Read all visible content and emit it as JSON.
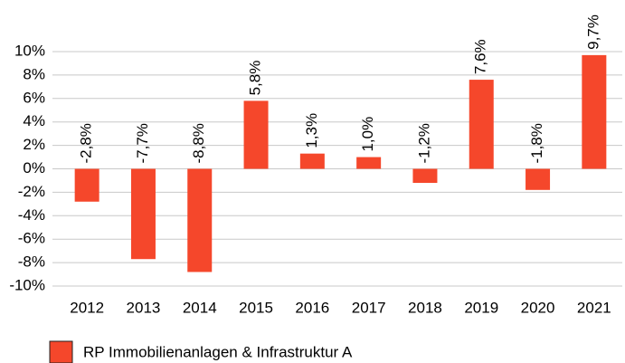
{
  "chart_data": {
    "type": "bar",
    "categories": [
      "2012",
      "2013",
      "2014",
      "2015",
      "2016",
      "2017",
      "2018",
      "2019",
      "2020",
      "2021"
    ],
    "series": [
      {
        "name": "RP Immobilienanlagen & Infrastruktur A",
        "color": "#f5472b",
        "values": [
          -2.8,
          -7.7,
          -8.8,
          5.8,
          1.3,
          1.0,
          -1.2,
          7.6,
          -1.8,
          9.7
        ],
        "value_labels": [
          "-2,8%",
          "-7,7%",
          "-8,8%",
          "5,8%",
          "1,3%",
          "1,0%",
          "-1,2%",
          "7,6%",
          "-1,8%",
          "9,7%"
        ]
      }
    ],
    "ylim": [
      -10,
      10
    ],
    "yticks": [
      {
        "value": -10,
        "label": "-10%"
      },
      {
        "value": -8,
        "label": "-8%"
      },
      {
        "value": -6,
        "label": "-6%"
      },
      {
        "value": -4,
        "label": "-4%"
      },
      {
        "value": -2,
        "label": "-2%"
      },
      {
        "value": 0,
        "label": "0%"
      },
      {
        "value": 2,
        "label": "2%"
      },
      {
        "value": 4,
        "label": "4%"
      },
      {
        "value": 6,
        "label": "6%"
      },
      {
        "value": 8,
        "label": "8%"
      },
      {
        "value": 10,
        "label": "10%"
      }
    ],
    "grid": true,
    "legend": "bottom"
  }
}
